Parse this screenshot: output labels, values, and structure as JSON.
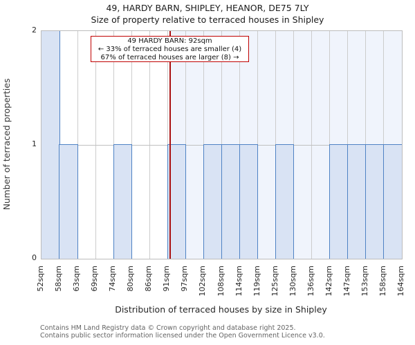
{
  "page": {
    "title": "49, HARDY BARN, SHIPLEY, HEANOR, DE75 7LY",
    "subtitle": "Size of property relative to terraced houses in Shipley"
  },
  "chart_data": {
    "type": "bar",
    "title": "49, HARDY BARN, SHIPLEY, HEANOR, DE75 7LY",
    "subtitle": "Size of property relative to terraced houses in Shipley",
    "xlabel": "Distribution of terraced houses by size in Shipley",
    "ylabel": "Number of terraced properties",
    "bin_edges_sqm": [
      52,
      58,
      63,
      69,
      74,
      80,
      86,
      91,
      97,
      102,
      108,
      114,
      119,
      125,
      130,
      136,
      142,
      147,
      153,
      158,
      164
    ],
    "x_tick_labels": [
      "52sqm",
      "58sqm",
      "63sqm",
      "69sqm",
      "74sqm",
      "80sqm",
      "86sqm",
      "91sqm",
      "97sqm",
      "102sqm",
      "108sqm",
      "114sqm",
      "119sqm",
      "125sqm",
      "130sqm",
      "136sqm",
      "142sqm",
      "147sqm",
      "153sqm",
      "158sqm",
      "164sqm"
    ],
    "counts": [
      2,
      1,
      0,
      0,
      1,
      0,
      0,
      1,
      0,
      1,
      1,
      1,
      0,
      1,
      0,
      0,
      1,
      1,
      1,
      1
    ],
    "y_ticks": [
      0,
      1,
      2
    ],
    "ylim": [
      0,
      2
    ],
    "grid": true,
    "legend": "none",
    "marker": {
      "value_sqm": 92,
      "axis_min_sqm": 52,
      "axis_max_sqm": 164,
      "label": "49 HARDY BARN: 92sqm",
      "smaller_text": "← 33% of terraced houses are smaller (4)",
      "larger_text": "67% of terraced houses are larger (8) →"
    },
    "colors": {
      "bar_fill": "#d9e3f4",
      "bar_edge": "#4e82c4",
      "marker_line": "#aa1111",
      "annotation_border": "#c00000",
      "shade_right_of_marker": "#f0f4fc",
      "gridline": "#cccccc"
    }
  },
  "footer": {
    "line1": "Contains HM Land Registry data © Crown copyright and database right 2025.",
    "line2": "Contains public sector information licensed under the Open Government Licence v3.0."
  }
}
